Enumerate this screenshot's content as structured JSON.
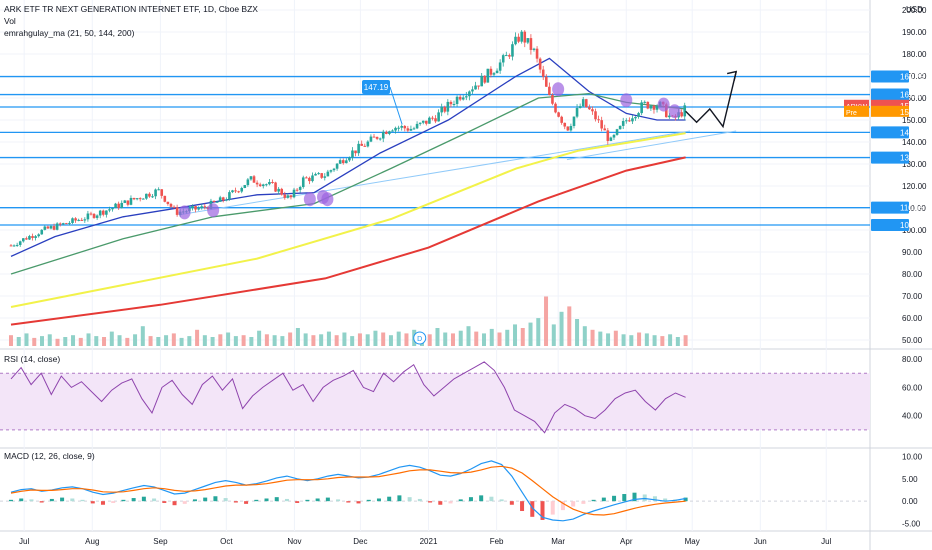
{
  "header": {
    "title": "ARK ETF TR NEXT GENERATION INTERNET ETF, 1D, Cboe BZX",
    "vol_label": "Vol",
    "ma_label": "emrahgulay_ma (21, 50, 144, 200)",
    "currency": "USD"
  },
  "rsi_label": "RSI (14, close)",
  "macd_label": "MACD (12, 26, close, 9)",
  "callout": "147.19",
  "dividend_marker": "D",
  "colors": {
    "up": "#26a69a",
    "down": "#ef5350",
    "ma21": "#2a3fbf",
    "ma50": "#4a9a6b",
    "ma144": "#f2f24a",
    "ma200": "#e53935",
    "hline": "#2196f3",
    "rsi": "#8e44ad",
    "macd": "#2196f3",
    "signal": "#ff6d00"
  },
  "chart_data": [
    {
      "type": "candlestick",
      "panel": "price",
      "symbol": "ARKW",
      "ylim": [
        50,
        200
      ],
      "y_ticks": [
        200,
        190,
        180,
        170,
        160,
        150,
        140,
        130,
        120,
        110,
        100,
        90,
        80,
        70,
        60,
        50
      ],
      "x_ticks": [
        "Jul",
        "Aug",
        "Sep",
        "Oct",
        "Nov",
        "Dec",
        "2021",
        "Feb",
        "Mar",
        "Apr",
        "May",
        "Jun",
        "Jul"
      ],
      "horizontal_levels": [
        169.75,
        161.57,
        155.91,
        144.37,
        132.92,
        110.15,
        102.27
      ],
      "price_labels": [
        {
          "text": "ARKW",
          "value": "155.11"
        },
        {
          "text": "Pre",
          "value": "155.07"
        }
      ],
      "close_series": [
        {
          "d": "2020-06-25",
          "c": 93
        },
        {
          "d": "2020-07-01",
          "c": 96
        },
        {
          "d": "2020-07-10",
          "c": 100
        },
        {
          "d": "2020-07-20",
          "c": 103
        },
        {
          "d": "2020-07-30",
          "c": 106
        },
        {
          "d": "2020-08-10",
          "c": 110
        },
        {
          "d": "2020-08-20",
          "c": 114
        },
        {
          "d": "2020-08-31",
          "c": 118
        },
        {
          "d": "2020-09-08",
          "c": 108
        },
        {
          "d": "2020-09-20",
          "c": 110
        },
        {
          "d": "2020-09-30",
          "c": 114
        },
        {
          "d": "2020-10-12",
          "c": 123
        },
        {
          "d": "2020-10-22",
          "c": 120
        },
        {
          "d": "2020-10-30",
          "c": 114
        },
        {
          "d": "2020-11-05",
          "c": 123
        },
        {
          "d": "2020-11-15",
          "c": 125
        },
        {
          "d": "2020-11-25",
          "c": 134
        },
        {
          "d": "2020-12-05",
          "c": 140
        },
        {
          "d": "2020-12-15",
          "c": 147
        },
        {
          "d": "2020-12-25",
          "c": 146
        },
        {
          "d": "2021-01-05",
          "c": 152
        },
        {
          "d": "2021-01-15",
          "c": 161
        },
        {
          "d": "2021-01-25",
          "c": 168
        },
        {
          "d": "2021-02-05",
          "c": 178
        },
        {
          "d": "2021-02-12",
          "c": 189
        },
        {
          "d": "2021-02-18",
          "c": 181
        },
        {
          "d": "2021-02-25",
          "c": 160
        },
        {
          "d": "2021-03-05",
          "c": 146
        },
        {
          "d": "2021-03-12",
          "c": 158
        },
        {
          "d": "2021-03-18",
          "c": 151
        },
        {
          "d": "2021-03-25",
          "c": 140
        },
        {
          "d": "2021-04-01",
          "c": 150
        },
        {
          "d": "2021-04-09",
          "c": 157
        },
        {
          "d": "2021-04-16",
          "c": 157
        },
        {
          "d": "2021-04-22",
          "c": 150
        },
        {
          "d": "2021-04-28",
          "c": 155
        }
      ],
      "moving_averages": [
        {
          "name": "MA21",
          "points": [
            {
              "d": "2020-06-25",
              "v": 88
            },
            {
              "d": "2020-07-15",
              "v": 97
            },
            {
              "d": "2020-08-15",
              "v": 106
            },
            {
              "d": "2020-09-15",
              "v": 111
            },
            {
              "d": "2020-10-15",
              "v": 116
            },
            {
              "d": "2020-11-10",
              "v": 117
            },
            {
              "d": "2020-12-10",
              "v": 135
            },
            {
              "d": "2021-01-10",
              "v": 150
            },
            {
              "d": "2021-02-10",
              "v": 170
            },
            {
              "d": "2021-02-25",
              "v": 178
            },
            {
              "d": "2021-03-15",
              "v": 163
            },
            {
              "d": "2021-04-01",
              "v": 153
            },
            {
              "d": "2021-04-15",
              "v": 150
            },
            {
              "d": "2021-04-28",
              "v": 150
            }
          ]
        },
        {
          "name": "MA50",
          "points": [
            {
              "d": "2020-06-25",
              "v": 80
            },
            {
              "d": "2020-08-15",
              "v": 96
            },
            {
              "d": "2020-09-25",
              "v": 106
            },
            {
              "d": "2020-11-10",
              "v": 112
            },
            {
              "d": "2020-12-15",
              "v": 128
            },
            {
              "d": "2021-01-20",
              "v": 145
            },
            {
              "d": "2021-02-20",
              "v": 160
            },
            {
              "d": "2021-03-15",
              "v": 162
            },
            {
              "d": "2021-04-01",
              "v": 158
            },
            {
              "d": "2021-04-28",
              "v": 155
            }
          ]
        },
        {
          "name": "MA144",
          "points": [
            {
              "d": "2020-06-25",
              "v": 65
            },
            {
              "d": "2020-08-15",
              "v": 75
            },
            {
              "d": "2020-10-15",
              "v": 87
            },
            {
              "d": "2020-12-15",
              "v": 105
            },
            {
              "d": "2021-02-10",
              "v": 128
            },
            {
              "d": "2021-03-10",
              "v": 136
            },
            {
              "d": "2021-04-28",
              "v": 144
            }
          ]
        },
        {
          "name": "MA200",
          "points": [
            {
              "d": "2020-06-25",
              "v": 57
            },
            {
              "d": "2020-09-01",
              "v": 66
            },
            {
              "d": "2020-11-15",
              "v": 78
            },
            {
              "d": "2021-01-01",
              "v": 92
            },
            {
              "d": "2021-02-20",
              "v": 113
            },
            {
              "d": "2021-04-01",
              "v": 127
            },
            {
              "d": "2021-04-28",
              "v": 133
            }
          ]
        }
      ],
      "projection": [
        {
          "d": "2021-04-28",
          "v": 154
        },
        {
          "d": "2021-05-03",
          "v": 149
        },
        {
          "d": "2021-05-09",
          "v": 155
        },
        {
          "d": "2021-05-15",
          "v": 147
        },
        {
          "d": "2021-05-21",
          "v": 172
        }
      ]
    },
    {
      "type": "bar",
      "panel": "volume",
      "ylim": [
        0,
        100
      ],
      "values": [
        12,
        10,
        14,
        9,
        11,
        13,
        8,
        10,
        12,
        9,
        14,
        11,
        10,
        16,
        12,
        9,
        13,
        22,
        11,
        10,
        12,
        14,
        9,
        11,
        18,
        12,
        10,
        13,
        15,
        11,
        12,
        10,
        17,
        13,
        12,
        11,
        15,
        20,
        14,
        12,
        13,
        16,
        12,
        15,
        11,
        14,
        13,
        17,
        15,
        12,
        16,
        14,
        18,
        12,
        13,
        20,
        15,
        14,
        17,
        22,
        16,
        14,
        19,
        15,
        18,
        24,
        20,
        26,
        31,
        55,
        24,
        38,
        44,
        30,
        22,
        18,
        16,
        14,
        17,
        13,
        12,
        15,
        14,
        12,
        11,
        13,
        10,
        12
      ]
    },
    {
      "type": "line",
      "panel": "rsi",
      "ylim": [
        20,
        85
      ],
      "y_ticks": [
        80,
        60,
        40
      ],
      "band": [
        30,
        70
      ],
      "values": [
        66,
        74,
        62,
        70,
        55,
        68,
        60,
        64,
        57,
        50,
        58,
        63,
        66,
        52,
        42,
        60,
        65,
        55,
        48,
        62,
        68,
        58,
        66,
        45,
        54,
        60,
        65,
        70,
        58,
        62,
        50,
        60,
        65,
        68,
        72,
        60,
        57,
        70,
        64,
        71,
        76,
        62,
        54,
        60,
        66,
        70,
        74,
        78,
        72,
        60,
        44,
        40,
        36,
        28,
        42,
        48,
        45,
        40,
        38,
        44,
        52,
        56,
        58,
        50,
        44,
        52,
        56,
        53
      ]
    },
    {
      "type": "bar+line",
      "panel": "macd",
      "ylim": [
        -6,
        11
      ],
      "y_ticks": [
        10.0,
        5.0,
        0.0,
        -5.0
      ],
      "histogram": [
        0.3,
        0.6,
        0.4,
        -0.3,
        0.5,
        0.8,
        0.6,
        0.3,
        -0.5,
        -0.8,
        -0.4,
        0.3,
        0.7,
        1.0,
        0.6,
        -0.4,
        -0.9,
        -0.6,
        0.4,
        0.8,
        1.1,
        0.7,
        -0.3,
        -0.6,
        0.3,
        0.6,
        0.9,
        0.5,
        -0.4,
        0.3,
        0.6,
        0.8,
        0.4,
        -0.3,
        -0.5,
        0.3,
        0.6,
        1.0,
        1.3,
        0.9,
        0.5,
        -0.3,
        -0.8,
        -0.5,
        0.4,
        0.9,
        1.3,
        1.0,
        0.4,
        -0.8,
        -2.2,
        -3.5,
        -4.2,
        -3.0,
        -2.0,
        -1.2,
        -0.6,
        0.3,
        0.8,
        1.2,
        1.6,
        1.9,
        1.5,
        1.1,
        0.6,
        0.4,
        0.8
      ],
      "macd_line": [
        2.0,
        2.6,
        2.8,
        2.2,
        2.5,
        3.0,
        3.2,
        2.8,
        2.0,
        1.5,
        1.8,
        2.4,
        3.0,
        3.5,
        3.2,
        2.4,
        1.6,
        1.8,
        2.6,
        3.4,
        4.2,
        4.6,
        4.2,
        3.6,
        3.9,
        4.5,
        5.2,
        5.6,
        5.0,
        4.6,
        5.0,
        5.6,
        6.0,
        5.6,
        5.2,
        5.4,
        6.0,
        6.8,
        7.6,
        8.0,
        7.6,
        6.8,
        5.8,
        5.6,
        6.2,
        7.2,
        8.4,
        9.0,
        8.2,
        5.6,
        2.0,
        -1.5,
        -3.6,
        -4.2,
        -4.4,
        -4.0,
        -3.0,
        -2.2,
        -1.5,
        -0.8,
        -0.2,
        0.4,
        0.6,
        0.3,
        0.0,
        0.2,
        0.6
      ],
      "signal_line": [
        1.8,
        2.2,
        2.5,
        2.4,
        2.4,
        2.6,
        2.8,
        2.8,
        2.5,
        2.1,
        2.0,
        2.1,
        2.4,
        2.8,
        3.0,
        2.8,
        2.4,
        2.2,
        2.3,
        2.6,
        3.0,
        3.4,
        3.6,
        3.6,
        3.7,
        3.9,
        4.3,
        4.7,
        4.8,
        4.8,
        4.8,
        5.0,
        5.3,
        5.4,
        5.4,
        5.4,
        5.5,
        5.9,
        6.3,
        6.8,
        7.0,
        7.0,
        6.7,
        6.4,
        6.3,
        6.5,
        7.0,
        7.6,
        7.8,
        7.4,
        6.3,
        4.6,
        2.8,
        1.0,
        -0.5,
        -1.8,
        -2.6,
        -3.0,
        -3.1,
        -2.8,
        -2.2,
        -1.6,
        -1.1,
        -0.7,
        -0.4,
        -0.2,
        0.0
      ]
    }
  ]
}
